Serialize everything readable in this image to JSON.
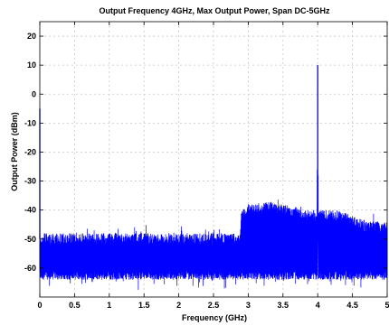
{
  "chart_data": {
    "type": "line",
    "title": "Output Frequency 4GHz, Max Output Power, Span DC-5GHz",
    "xlabel": "Frequency (GHz)",
    "ylabel": "Output Power (dBm)",
    "xlim": [
      0,
      5
    ],
    "ylim": [
      -70,
      25
    ],
    "xticks": [
      0,
      0.5,
      1,
      1.5,
      2,
      2.5,
      3,
      3.5,
      4,
      4.5,
      5
    ],
    "xtick_labels": [
      "0",
      "0.5",
      "1",
      "1.5",
      "2",
      "2.5",
      "3",
      "3.5",
      "4",
      "4.5",
      "5"
    ],
    "yticks": [
      -60,
      -50,
      -40,
      -30,
      -20,
      -10,
      0,
      10,
      20
    ],
    "ytick_labels": [
      "-60",
      "-50",
      "-40",
      "-30",
      "-20",
      "-10",
      "0",
      "10",
      "20"
    ],
    "grid": true,
    "line_color": "#0000ff",
    "series": [
      {
        "x": [
          0.0,
          0.5,
          1.0,
          1.5,
          2.0,
          2.5,
          2.88,
          2.9,
          3.0,
          3.3,
          3.5,
          3.8,
          3.99,
          4.0,
          4.01,
          4.3,
          4.5,
          4.7,
          5.0
        ],
        "noise_top": [
          -48,
          -48,
          -48,
          -48,
          -48,
          -48,
          -48,
          -40,
          -38,
          -37,
          -38,
          -40,
          -40,
          10,
          -40,
          -40,
          -42,
          -44,
          -44
        ],
        "noise_bottom": [
          -64,
          -64,
          -64,
          -64,
          -64,
          -64,
          -64,
          -64,
          -64,
          -64,
          -64,
          -64,
          -64,
          -64,
          -64,
          -64,
          -64,
          -64,
          -64
        ]
      }
    ],
    "peaks": [
      {
        "x": 0.0,
        "y": -5
      },
      {
        "x": 4.0,
        "y": 10
      }
    ]
  }
}
